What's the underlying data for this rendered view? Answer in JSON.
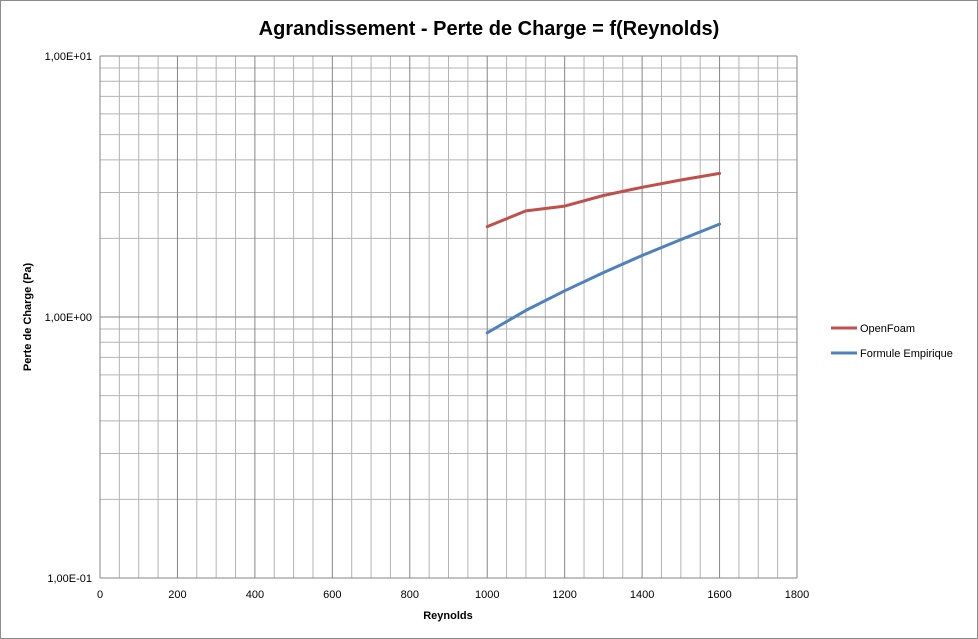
{
  "chart_data": {
    "type": "line",
    "title": "Agrandissement - Perte de Charge = f(Reynolds)",
    "xlabel": "Reynolds",
    "ylabel": "Perte de Charge (Pa)",
    "xlim": [
      0,
      1800
    ],
    "ylim": [
      0.1,
      10
    ],
    "yscale": "log",
    "grid": true,
    "legend_position": "right",
    "x_ticks": [
      0,
      200,
      400,
      600,
      800,
      1000,
      1200,
      1400,
      1600,
      1800
    ],
    "x_tick_labels": [
      "0",
      "200",
      "400",
      "600",
      "800",
      "1000",
      "1200",
      "1400",
      "1600",
      "1800"
    ],
    "y_ticks": [
      0.1,
      1,
      10
    ],
    "y_tick_labels": [
      "1,00E-01",
      "1,00E+00",
      "1,00E+01"
    ],
    "series": [
      {
        "name": "OpenFoam",
        "color": "#c0504d",
        "x": [
          1000,
          1100,
          1200,
          1300,
          1400,
          1500,
          1600
        ],
        "y": [
          2.22,
          2.55,
          2.66,
          2.92,
          3.14,
          3.35,
          3.55
        ]
      },
      {
        "name": "Formule Empirique",
        "color": "#4f81bd",
        "x": [
          1000,
          1100,
          1200,
          1300,
          1400,
          1500,
          1600
        ],
        "y": [
          0.87,
          1.06,
          1.26,
          1.48,
          1.72,
          1.98,
          2.27
        ]
      }
    ]
  }
}
